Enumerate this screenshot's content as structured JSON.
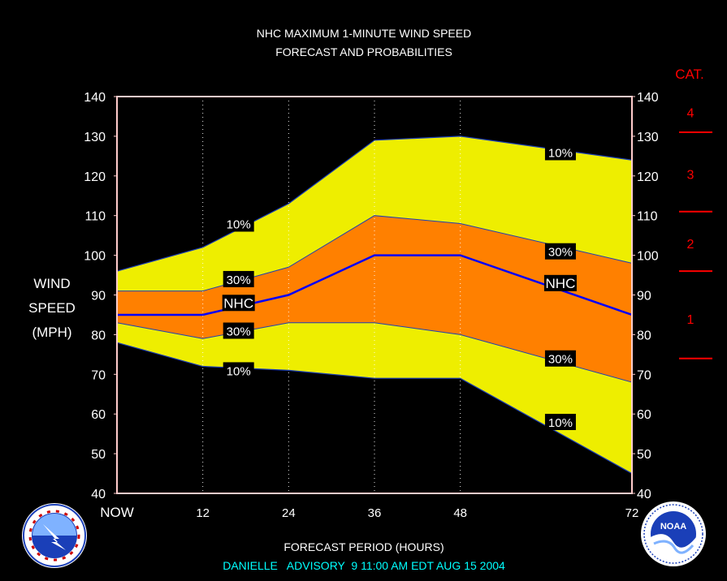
{
  "title_line1": "NHC MAXIMUM 1-MINUTE WIND SPEED",
  "title_line2": "FORECAST AND PROBABILITIES",
  "xlabel": "FORECAST PERIOD (HOURS)",
  "ylabel_lines": [
    "WIND",
    "SPEED",
    "(MPH)"
  ],
  "advisory": "DANIELLE   ADVISORY  9 11:00 AM EDT AUG 15 2004",
  "cat_header": "CAT.",
  "colors": {
    "background": "#000000",
    "band10": "#eeee00",
    "band30": "#ff8000",
    "nhc_line": "#0000ff",
    "cat": "#ff0000",
    "text": "#ffffff",
    "advisory_text": "#00ffff",
    "frame": "#ffcccc"
  },
  "icons": {
    "left_logo": "nws-logo",
    "right_logo": "noaa-logo"
  },
  "chart_data": {
    "type": "area",
    "title": "NHC MAXIMUM 1-MINUTE WIND SPEED FORECAST AND PROBABILITIES",
    "xlabel": "FORECAST PERIOD (HOURS)",
    "ylabel": "WIND SPEED (MPH)",
    "xlim": [
      0,
      72
    ],
    "ylim": [
      40,
      140
    ],
    "x_ticks": [
      0,
      12,
      24,
      36,
      48,
      72
    ],
    "x_tick_labels": [
      "NOW",
      "12",
      "24",
      "36",
      "48",
      "72"
    ],
    "y_ticks": [
      40,
      50,
      60,
      70,
      80,
      90,
      100,
      110,
      120,
      130,
      140
    ],
    "grid": "vertical dotted at tick hours",
    "x": [
      0,
      12,
      24,
      36,
      48,
      72
    ],
    "series": [
      {
        "name": "10%",
        "values": [
          96,
          102,
          113,
          129,
          130,
          124
        ]
      },
      {
        "name": "30%",
        "values": [
          91,
          91,
          97,
          110,
          108,
          98
        ]
      },
      {
        "name": "NHC",
        "values": [
          85,
          85,
          90,
          100,
          100,
          85
        ]
      },
      {
        "name": "30%",
        "values": [
          83,
          79,
          83,
          83,
          80,
          68
        ]
      },
      {
        "name": "10%",
        "values": [
          78,
          72,
          71,
          69,
          69,
          45
        ]
      }
    ],
    "band_labels": [
      {
        "text": "10%",
        "x": 17,
        "y": 108
      },
      {
        "text": "30%",
        "x": 17,
        "y": 94
      },
      {
        "text": "NHC",
        "x": 17,
        "y": 88
      },
      {
        "text": "30%",
        "x": 17,
        "y": 81
      },
      {
        "text": "10%",
        "x": 17,
        "y": 71
      },
      {
        "text": "10%",
        "x": 62,
        "y": 126
      },
      {
        "text": "30%",
        "x": 62,
        "y": 101
      },
      {
        "text": "NHC",
        "x": 62,
        "y": 93
      },
      {
        "text": "30%",
        "x": 62,
        "y": 74
      },
      {
        "text": "10%",
        "x": 62,
        "y": 58
      }
    ],
    "categories_scale": [
      {
        "label": "4",
        "y_mid": 136
      },
      {
        "label": "3",
        "y_mid": 120.5
      },
      {
        "label": "2",
        "y_mid": 103
      },
      {
        "label": "1",
        "y_mid": 84
      }
    ],
    "category_thresholds": [
      131,
      111,
      96,
      74
    ]
  }
}
